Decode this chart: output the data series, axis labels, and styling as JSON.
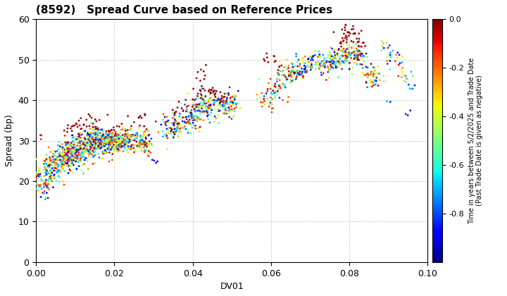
{
  "title": "(8592)   Spread Curve based on Reference Prices",
  "xlabel": "DV01",
  "ylabel": "Spread (bp)",
  "xlim": [
    0.0,
    0.1
  ],
  "ylim": [
    0,
    60
  ],
  "xticks": [
    0.0,
    0.02,
    0.04,
    0.06,
    0.08,
    0.1
  ],
  "yticks": [
    0,
    10,
    20,
    30,
    40,
    50,
    60
  ],
  "colorbar_label": "Time in years between 5/2/2025 and Trade Date\n(Past Trade Date is given as negative)",
  "colorbar_ticks": [
    0.0,
    -0.2,
    -0.4,
    -0.6,
    -0.8
  ],
  "vmin": -1.0,
  "vmax": 0.0,
  "background": "#ffffff",
  "grid_color": "#b0b0b0",
  "title_fontsize": 11,
  "axis_fontsize": 9,
  "label_fontsize": 9
}
